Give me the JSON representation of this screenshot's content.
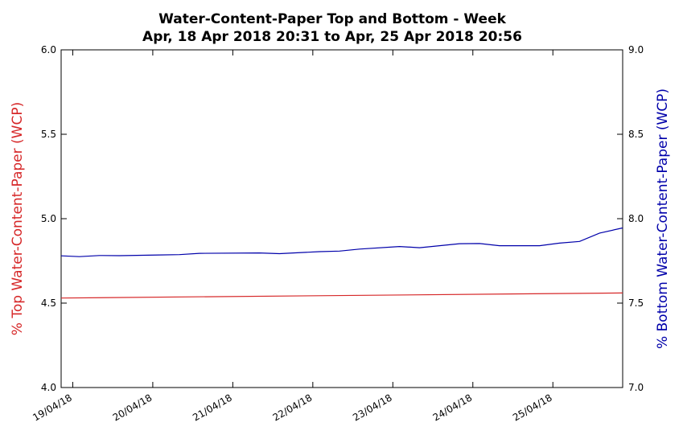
{
  "chart_data": {
    "type": "line",
    "title": "Water-Content-Paper Top and Bottom - Week",
    "subtitle": "Apr, 18 Apr 2018 20:31 to Apr, 25 Apr 2018 20:56",
    "x_range": [
      "2018-04-18T20:31",
      "2018-04-25T20:56"
    ],
    "x_tick_labels": [
      "19/04/18",
      "20/04/18",
      "21/04/18",
      "22/04/18",
      "23/04/18",
      "24/04/18",
      "25/04/18"
    ],
    "y_left": {
      "label": "% Top Water-Content-Paper (WCP)",
      "range": [
        4.0,
        6.0
      ],
      "ticks": [
        "4.0",
        "4.5",
        "5.0",
        "5.5",
        "6.0"
      ],
      "color": "#d62728"
    },
    "y_right": {
      "label": "% Bottom Water-Content-Paper (WCP)",
      "range": [
        7.0,
        9.0
      ],
      "ticks": [
        "7.0",
        "7.5",
        "8.0",
        "8.5",
        "9.0"
      ],
      "color": "#0000aa"
    },
    "grid": false,
    "series": [
      {
        "axis": "left",
        "color": "#d62728",
        "x": [
          "2018-04-18T20:31",
          "2018-04-25T20:56"
        ],
        "y": [
          4.53,
          4.56
        ]
      },
      {
        "axis": "right",
        "color": "#0000aa",
        "x": [
          "2018-04-18T20:31",
          "2018-04-19T02:00",
          "2018-04-19T08:00",
          "2018-04-19T14:00",
          "2018-04-20T02:00",
          "2018-04-20T08:00",
          "2018-04-20T14:00",
          "2018-04-21T08:00",
          "2018-04-21T14:00",
          "2018-04-22T02:00",
          "2018-04-22T08:00",
          "2018-04-22T14:00",
          "2018-04-23T02:00",
          "2018-04-23T08:00",
          "2018-04-23T20:00",
          "2018-04-24T02:00",
          "2018-04-24T08:00",
          "2018-04-24T20:00",
          "2018-04-25T02:00",
          "2018-04-25T08:00",
          "2018-04-25T14:00",
          "2018-04-25T20:56"
        ],
        "y": [
          7.78,
          7.775,
          7.782,
          7.781,
          7.785,
          7.787,
          7.795,
          7.797,
          7.793,
          7.805,
          7.808,
          7.82,
          7.835,
          7.828,
          7.852,
          7.853,
          7.84,
          7.84,
          7.855,
          7.865,
          7.915,
          7.945
        ]
      }
    ]
  }
}
